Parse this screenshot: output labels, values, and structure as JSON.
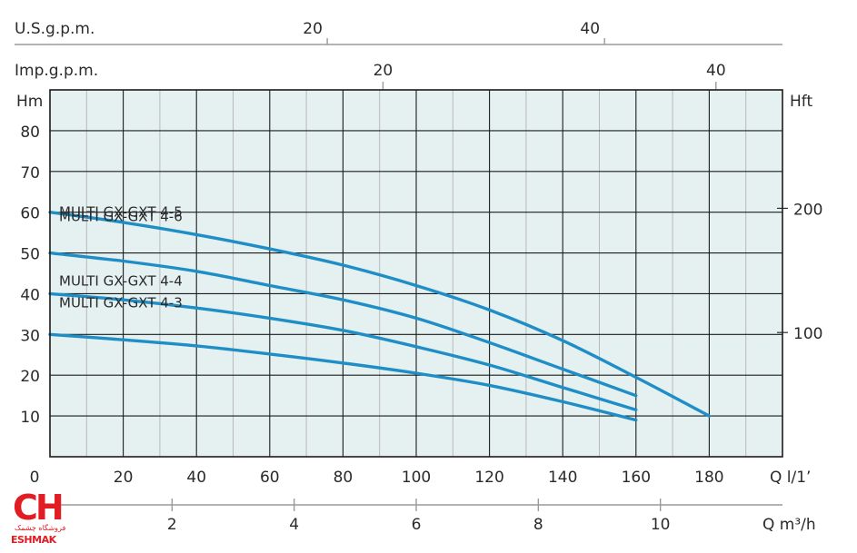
{
  "chart_data": {
    "type": "line",
    "ylabel_left": "Hm",
    "ylabel_right": "Hft",
    "top_axis_1_label": "U.S.g.p.m.",
    "top_axis_2_label": "Imp.g.p.m.",
    "bottom_axis_1_label": "Q l/1’",
    "bottom_axis_2_label": "Q m³/h",
    "xlim": [
      0,
      200
    ],
    "ylim": [
      0,
      90
    ],
    "y_ticks": [
      10,
      20,
      30,
      40,
      50,
      60,
      70,
      80
    ],
    "y_tick_labels": [
      "10",
      "20",
      "30",
      "40",
      "50",
      "60",
      "70",
      "80"
    ],
    "x_ticks": [
      0,
      20,
      40,
      60,
      80,
      100,
      120,
      140,
      160,
      180
    ],
    "x_tick_labels": [
      "0",
      "20",
      "40",
      "60",
      "80",
      "100",
      "120",
      "140",
      "160",
      "180"
    ],
    "m3h_ticks": [
      2,
      4,
      6,
      8,
      10
    ],
    "m3h_tick_labels": [
      "2",
      "4",
      "6",
      "8",
      "10"
    ],
    "usgpm_ticks": [
      20,
      40
    ],
    "usgpm_tick_labels": [
      "20",
      "40"
    ],
    "impgpm_ticks": [
      20,
      40
    ],
    "impgpm_tick_labels": [
      "20",
      "40"
    ],
    "hft_ticks": [
      100,
      200
    ],
    "hft_tick_labels": [
      "100",
      "200"
    ],
    "grid": true,
    "series": [
      {
        "name": "MULTI GX-GXT 4-6",
        "x": [
          0,
          20,
          40,
          60,
          80,
          100,
          120,
          140,
          160,
          180
        ],
        "y": [
          60,
          57.5,
          54.5,
          51,
          47,
          42,
          36,
          28.5,
          19.5,
          10
        ]
      },
      {
        "name": "MULTI GX-GXT 4-5",
        "x": [
          0,
          20,
          40,
          60,
          80,
          100,
          120,
          140,
          160
        ],
        "y": [
          50,
          48,
          45.5,
          42,
          38.5,
          34,
          28,
          21.5,
          15
        ]
      },
      {
        "name": "MULTI GX-GXT 4-4",
        "x": [
          0,
          20,
          40,
          60,
          80,
          100,
          120,
          140,
          160
        ],
        "y": [
          40,
          38.5,
          36.5,
          34,
          31,
          27,
          22.5,
          17,
          11.5
        ]
      },
      {
        "name": "MULTI GX-GXT 4-3",
        "x": [
          0,
          20,
          40,
          60,
          80,
          100,
          120,
          140,
          160
        ],
        "y": [
          30,
          28.7,
          27.2,
          25.2,
          23,
          20.5,
          17.5,
          13.5,
          9
        ]
      }
    ],
    "line_color": "#1f8ec7",
    "plot_background": "#e5f1f1"
  },
  "logo": {
    "mark": "CH",
    "persian": "فروشگاه چشمک",
    "latin": "ESHMAK",
    "color": "#e31b23"
  }
}
